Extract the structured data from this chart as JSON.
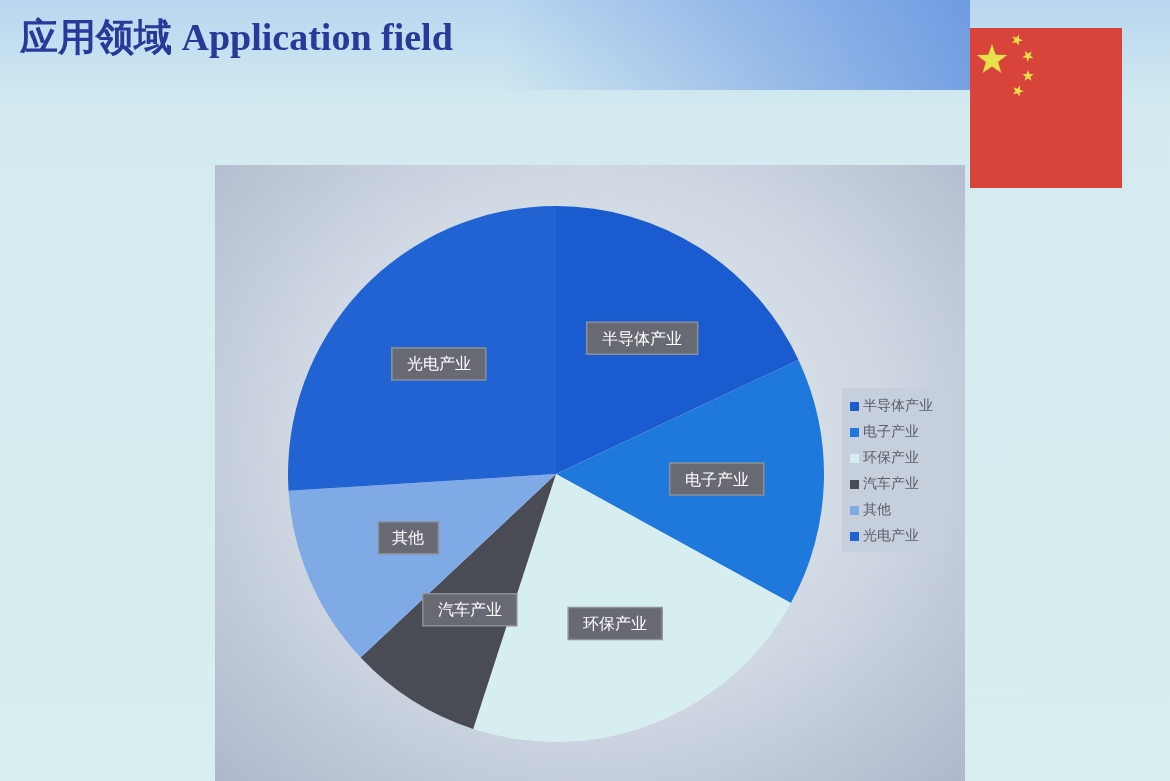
{
  "chart_data": {
    "type": "pie",
    "title": "应用领域 Application field",
    "categories": [
      "半导体产业",
      "电子产业",
      "环保产业",
      "汽车产业",
      "其他",
      "光电产业"
    ],
    "values": [
      18,
      15,
      22,
      8,
      11,
      26
    ],
    "colors": [
      "#1a5bd0",
      "#1f78dc",
      "#d6eef0",
      "#4a4c55",
      "#7faae6",
      "#2163d3"
    ],
    "legend": "right"
  }
}
